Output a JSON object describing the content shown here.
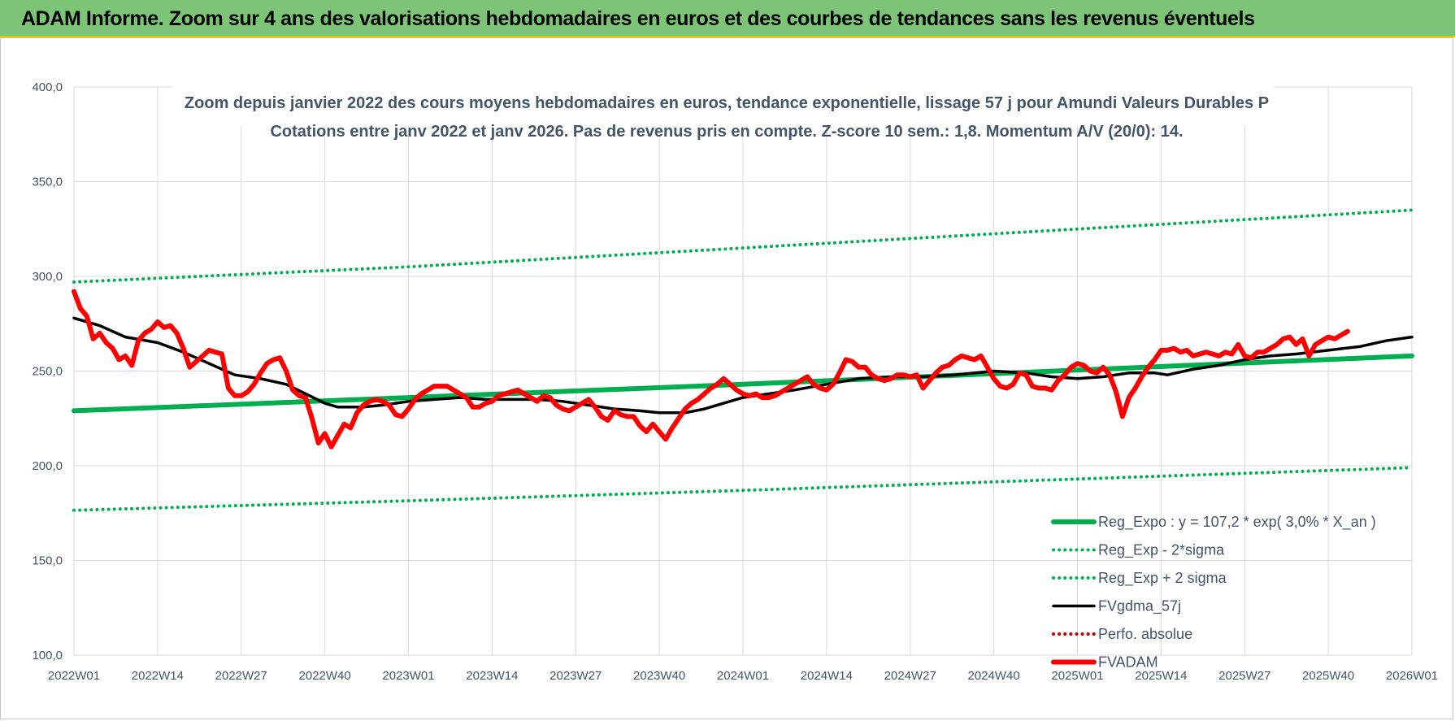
{
  "header": {
    "title": "ADAM Informe. Zoom sur 4 ans des valorisations hebdomadaires en euros et des courbes de tendances sans les revenus éventuels"
  },
  "chart_data": {
    "type": "line",
    "title": "Zoom depuis janvier 2022 des cours moyens hebdomadaires en euros, tendance exponentielle, lissage 57 j pour Amundi Valeurs Durables P",
    "subtitle": "Cotations entre janv 2022 et janv 2026. Pas de revenus pris en compte. Z-score 10 sem.: 1,8. Momentum A/V (20/0): 14.",
    "xlabel": "",
    "ylabel": "",
    "ylim": [
      100,
      400
    ],
    "yticks": [
      "100,0",
      "150,0",
      "200,0",
      "250,0",
      "300,0",
      "350,0",
      "400,0"
    ],
    "x_range_weeks": [
      0,
      208
    ],
    "x_ticks": [
      {
        "label": "2022W01",
        "week": 0
      },
      {
        "label": "2022W14",
        "week": 13
      },
      {
        "label": "2022W27",
        "week": 26
      },
      {
        "label": "2022W40",
        "week": 39
      },
      {
        "label": "2023W01",
        "week": 52
      },
      {
        "label": "2023W14",
        "week": 65
      },
      {
        "label": "2023W27",
        "week": 78
      },
      {
        "label": "2023W40",
        "week": 91
      },
      {
        "label": "2024W01",
        "week": 104
      },
      {
        "label": "2024W14",
        "week": 117
      },
      {
        "label": "2024W27",
        "week": 130
      },
      {
        "label": "2024W40",
        "week": 143
      },
      {
        "label": "2025W01",
        "week": 156
      },
      {
        "label": "2025W14",
        "week": 169
      },
      {
        "label": "2025W27",
        "week": 182
      },
      {
        "label": "2025W40",
        "week": 195
      },
      {
        "label": "2026W01",
        "week": 208
      }
    ],
    "grid": true,
    "legend_position": "bottom-right",
    "series": [
      {
        "name": "Reg_Expo : y = 107,2 * exp( 3,0% *  X_an )",
        "color": "#00b050",
        "style": "thick",
        "points": [
          [
            0,
            229
          ],
          [
            52,
            236
          ],
          [
            104,
            243
          ],
          [
            156,
            250.5
          ],
          [
            208,
            258
          ]
        ]
      },
      {
        "name": "Reg_Exp - 2*sigma",
        "color": "#00b050",
        "style": "dotted",
        "points": [
          [
            0,
            176.5
          ],
          [
            52,
            181.5
          ],
          [
            104,
            187
          ],
          [
            156,
            193
          ],
          [
            208,
            199
          ]
        ]
      },
      {
        "name": "Reg_Exp + 2 sigma",
        "color": "#00b050",
        "style": "dotted",
        "points": [
          [
            0,
            297
          ],
          [
            52,
            305
          ],
          [
            104,
            315
          ],
          [
            156,
            325
          ],
          [
            208,
            335
          ]
        ]
      },
      {
        "name": "FVgdma_57j",
        "color": "#000000",
        "style": "solid",
        "points": [
          [
            0,
            278
          ],
          [
            4,
            274
          ],
          [
            8,
            268
          ],
          [
            13,
            265
          ],
          [
            17,
            260
          ],
          [
            21,
            254
          ],
          [
            25,
            248
          ],
          [
            29,
            246
          ],
          [
            33,
            243
          ],
          [
            36,
            238
          ],
          [
            39,
            233
          ],
          [
            41,
            231
          ],
          [
            45,
            231
          ],
          [
            48,
            232
          ],
          [
            52,
            234
          ],
          [
            56,
            235
          ],
          [
            60,
            236
          ],
          [
            64,
            235
          ],
          [
            68,
            235
          ],
          [
            72,
            235
          ],
          [
            76,
            234
          ],
          [
            80,
            232
          ],
          [
            84,
            230
          ],
          [
            88,
            229
          ],
          [
            91,
            228
          ],
          [
            95,
            228
          ],
          [
            98,
            230
          ],
          [
            101,
            233
          ],
          [
            104,
            236
          ],
          [
            108,
            238
          ],
          [
            112,
            240
          ],
          [
            117,
            243
          ],
          [
            122,
            246
          ],
          [
            127,
            247
          ],
          [
            132,
            247
          ],
          [
            137,
            248
          ],
          [
            143,
            250
          ],
          [
            148,
            249
          ],
          [
            152,
            247
          ],
          [
            156,
            246
          ],
          [
            160,
            247
          ],
          [
            164,
            249
          ],
          [
            168,
            249
          ],
          [
            170,
            248
          ],
          [
            174,
            251
          ],
          [
            178,
            253
          ],
          [
            182,
            256
          ],
          [
            186,
            258
          ],
          [
            190,
            259
          ],
          [
            195,
            261
          ],
          [
            200,
            263
          ],
          [
            204,
            266
          ],
          [
            208,
            268
          ]
        ]
      },
      {
        "name": "Perfo. absolue",
        "color": "#c00000",
        "style": "dotted",
        "points": []
      },
      {
        "name": "FVADAM",
        "color": "#ff0000",
        "style": "thick",
        "points": [
          [
            0,
            292
          ],
          [
            1,
            283
          ],
          [
            2,
            279
          ],
          [
            3,
            267
          ],
          [
            4,
            270
          ],
          [
            5,
            265
          ],
          [
            6,
            262
          ],
          [
            7,
            256
          ],
          [
            8,
            258
          ],
          [
            9,
            253
          ],
          [
            10,
            266
          ],
          [
            11,
            270
          ],
          [
            12,
            272
          ],
          [
            13,
            276
          ],
          [
            14,
            273
          ],
          [
            15,
            274
          ],
          [
            16,
            270
          ],
          [
            17,
            262
          ],
          [
            18,
            252
          ],
          [
            19,
            255
          ],
          [
            20,
            258
          ],
          [
            21,
            261
          ],
          [
            22,
            260
          ],
          [
            23,
            259
          ],
          [
            24,
            241
          ],
          [
            25,
            237
          ],
          [
            26,
            237
          ],
          [
            27,
            239
          ],
          [
            28,
            243
          ],
          [
            29,
            249
          ],
          [
            30,
            254
          ],
          [
            31,
            256
          ],
          [
            32,
            257
          ],
          [
            33,
            250
          ],
          [
            34,
            240
          ],
          [
            35,
            237
          ],
          [
            36,
            236
          ],
          [
            37,
            225
          ],
          [
            38,
            212
          ],
          [
            39,
            217
          ],
          [
            40,
            210
          ],
          [
            41,
            216
          ],
          [
            42,
            222
          ],
          [
            43,
            220
          ],
          [
            44,
            228
          ],
          [
            45,
            232
          ],
          [
            46,
            234
          ],
          [
            47,
            235
          ],
          [
            48,
            234
          ],
          [
            49,
            232
          ],
          [
            50,
            227
          ],
          [
            51,
            226
          ],
          [
            52,
            230
          ],
          [
            53,
            235
          ],
          [
            54,
            238
          ],
          [
            55,
            240
          ],
          [
            56,
            242
          ],
          [
            57,
            242
          ],
          [
            58,
            242
          ],
          [
            59,
            240
          ],
          [
            60,
            238
          ],
          [
            61,
            236
          ],
          [
            62,
            231
          ],
          [
            63,
            231
          ],
          [
            64,
            233
          ],
          [
            65,
            234
          ],
          [
            66,
            237
          ],
          [
            67,
            238
          ],
          [
            68,
            239
          ],
          [
            69,
            240
          ],
          [
            70,
            238
          ],
          [
            71,
            236
          ],
          [
            72,
            234
          ],
          [
            73,
            237
          ],
          [
            74,
            236
          ],
          [
            75,
            232
          ],
          [
            76,
            230
          ],
          [
            77,
            229
          ],
          [
            78,
            231
          ],
          [
            79,
            233
          ],
          [
            80,
            235
          ],
          [
            81,
            231
          ],
          [
            82,
            226
          ],
          [
            83,
            224
          ],
          [
            84,
            229
          ],
          [
            85,
            227
          ],
          [
            86,
            226
          ],
          [
            87,
            226
          ],
          [
            88,
            221
          ],
          [
            89,
            218
          ],
          [
            90,
            222
          ],
          [
            91,
            218
          ],
          [
            92,
            214
          ],
          [
            93,
            220
          ],
          [
            94,
            225
          ],
          [
            95,
            230
          ],
          [
            96,
            233
          ],
          [
            97,
            235
          ],
          [
            98,
            238
          ],
          [
            99,
            241
          ],
          [
            100,
            243
          ],
          [
            101,
            246
          ],
          [
            102,
            243
          ],
          [
            103,
            240
          ],
          [
            104,
            238
          ],
          [
            105,
            237
          ],
          [
            106,
            238
          ],
          [
            107,
            236
          ],
          [
            108,
            236
          ],
          [
            109,
            237
          ],
          [
            110,
            239
          ],
          [
            111,
            241
          ],
          [
            112,
            243
          ],
          [
            113,
            245
          ],
          [
            114,
            247
          ],
          [
            115,
            243
          ],
          [
            116,
            241
          ],
          [
            117,
            240
          ],
          [
            118,
            243
          ],
          [
            119,
            249
          ],
          [
            120,
            256
          ],
          [
            121,
            255
          ],
          [
            122,
            252
          ],
          [
            123,
            252
          ],
          [
            124,
            248
          ],
          [
            125,
            246
          ],
          [
            126,
            245
          ],
          [
            127,
            246
          ],
          [
            128,
            248
          ],
          [
            129,
            248
          ],
          [
            130,
            247
          ],
          [
            131,
            248
          ],
          [
            132,
            241
          ],
          [
            133,
            245
          ],
          [
            134,
            249
          ],
          [
            135,
            252
          ],
          [
            136,
            253
          ],
          [
            137,
            256
          ],
          [
            138,
            258
          ],
          [
            139,
            257
          ],
          [
            140,
            256
          ],
          [
            141,
            258
          ],
          [
            142,
            252
          ],
          [
            143,
            246
          ],
          [
            144,
            242
          ],
          [
            145,
            241
          ],
          [
            146,
            243
          ],
          [
            147,
            249
          ],
          [
            148,
            248
          ],
          [
            149,
            242
          ],
          [
            150,
            241
          ],
          [
            151,
            241
          ],
          [
            152,
            240
          ],
          [
            153,
            245
          ],
          [
            154,
            248
          ],
          [
            155,
            252
          ],
          [
            156,
            254
          ],
          [
            157,
            253
          ],
          [
            158,
            250
          ],
          [
            159,
            249
          ],
          [
            160,
            252
          ],
          [
            161,
            248
          ],
          [
            162,
            239
          ],
          [
            163,
            226
          ],
          [
            164,
            236
          ],
          [
            165,
            241
          ],
          [
            166,
            247
          ],
          [
            167,
            252
          ],
          [
            168,
            256
          ],
          [
            169,
            261
          ],
          [
            170,
            261
          ],
          [
            171,
            262
          ],
          [
            172,
            260
          ],
          [
            173,
            261
          ],
          [
            174,
            258
          ],
          [
            175,
            259
          ],
          [
            176,
            260
          ],
          [
            177,
            259
          ],
          [
            178,
            258
          ],
          [
            179,
            260
          ],
          [
            180,
            259
          ],
          [
            181,
            264
          ],
          [
            182,
            258
          ],
          [
            183,
            257
          ],
          [
            184,
            260
          ],
          [
            185,
            260
          ],
          [
            186,
            262
          ],
          [
            187,
            264
          ],
          [
            188,
            267
          ],
          [
            189,
            268
          ],
          [
            190,
            264
          ],
          [
            191,
            267
          ],
          [
            192,
            258
          ],
          [
            193,
            264
          ],
          [
            194,
            266
          ],
          [
            195,
            268
          ],
          [
            196,
            267
          ],
          [
            197,
            269
          ],
          [
            198,
            271
          ]
        ]
      }
    ]
  }
}
